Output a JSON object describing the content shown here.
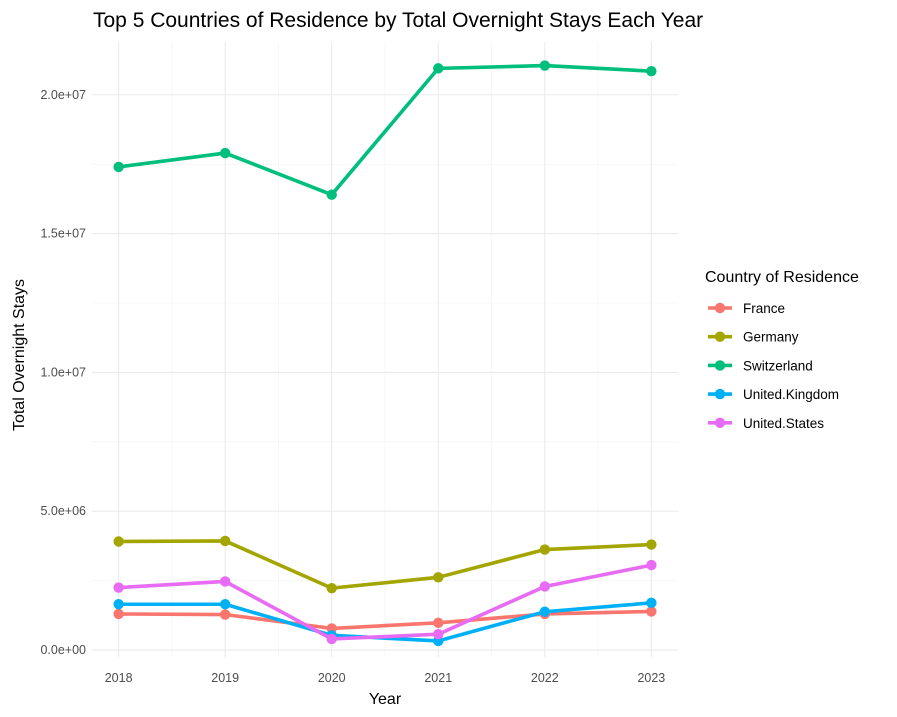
{
  "chart_data": {
    "type": "line",
    "title": "Top 5 Countries of Residence by Total Overnight Stays Each Year",
    "xlabel": "Year",
    "ylabel": "Total Overnight Stays",
    "x": [
      2018,
      2019,
      2020,
      2021,
      2022,
      2023
    ],
    "ylim": [
      -250000,
      21900000
    ],
    "y_ticks": [
      0,
      5000000,
      10000000,
      15000000,
      20000000
    ],
    "y_tick_labels": [
      "0.0e+00",
      "5.0e+06",
      "1.0e+07",
      "1.5e+07",
      "2.0e+07"
    ],
    "x_tick_labels": [
      "2018",
      "2019",
      "2020",
      "2021",
      "2022",
      "2023"
    ],
    "grid": true,
    "legend_title": "Country of Residence",
    "legend_position": "right",
    "series": [
      {
        "name": "France",
        "color": "#F8766D",
        "values": [
          1300000,
          1280000,
          780000,
          980000,
          1300000,
          1390000
        ]
      },
      {
        "name": "Germany",
        "color": "#A3A500",
        "values": [
          3910000,
          3930000,
          2230000,
          2620000,
          3620000,
          3800000
        ]
      },
      {
        "name": "Switzerland",
        "color": "#00BF7D",
        "values": [
          17400000,
          17900000,
          16400000,
          20950000,
          21050000,
          20850000
        ]
      },
      {
        "name": "United.Kingdom",
        "color": "#00B0F6",
        "values": [
          1650000,
          1650000,
          530000,
          330000,
          1380000,
          1700000
        ]
      },
      {
        "name": "United.States",
        "color": "#E76BF3",
        "values": [
          2250000,
          2470000,
          400000,
          570000,
          2290000,
          3060000
        ]
      }
    ]
  }
}
